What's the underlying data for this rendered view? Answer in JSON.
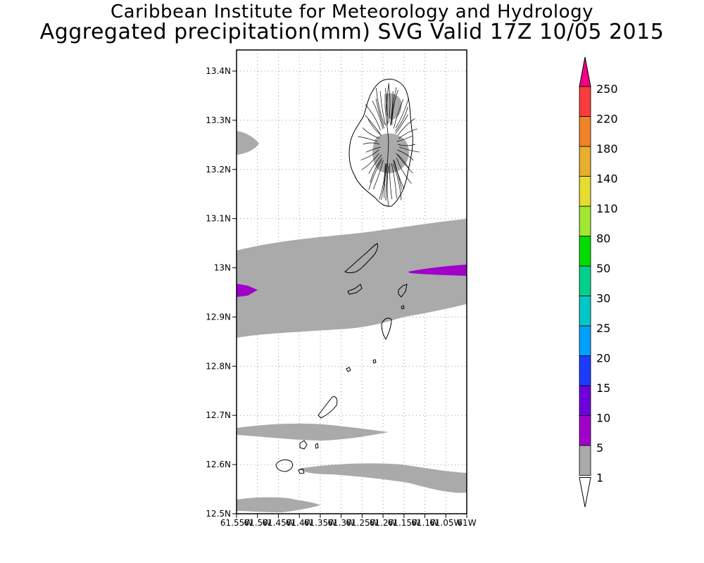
{
  "title": {
    "line1": "Caribbean Institute for Meteorology and Hydrology",
    "line2": "Aggregated precipitation(mm) SVG Valid 17Z 10/05 2015"
  },
  "axes": {
    "lat_ticks": [
      "13.4N",
      "13.3N",
      "13.2N",
      "13.1N",
      "13N",
      "12.9N",
      "12.8N",
      "12.7N",
      "12.6N",
      "12.5N"
    ],
    "lon_ticks": [
      "61.55W",
      "61.5W",
      "61.45W",
      "61.4W",
      "61.35W",
      "61.3W",
      "61.25W",
      "61.2W",
      "61.15W",
      "61.1W",
      "61.05W",
      "61W"
    ]
  },
  "colorbar": {
    "levels": [
      "1",
      "5",
      "10",
      "15",
      "20",
      "25",
      "30",
      "50",
      "80",
      "110",
      "140",
      "180",
      "220",
      "250"
    ],
    "colors": [
      "#ffffff",
      "#aaaaaa",
      "#a000c8",
      "#6e00dc",
      "#1e3cff",
      "#00a0ff",
      "#00c8c8",
      "#00d28c",
      "#00dc00",
      "#a0e632",
      "#e6dc32",
      "#e6af2d",
      "#f08228",
      "#fa3c3c",
      "#f00082"
    ]
  },
  "regions": {
    "rain_color": "#aaaaaa",
    "heavy_color": "#a000c8",
    "land_fill": "#ffffff",
    "land_stroke": "#000000"
  }
}
